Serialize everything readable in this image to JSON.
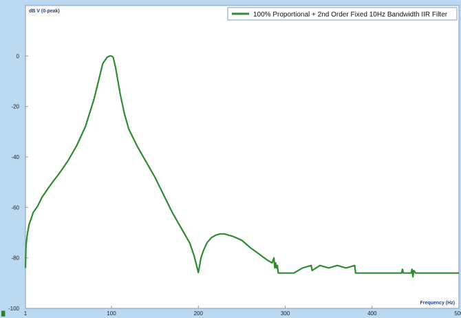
{
  "chart_data": {
    "type": "line",
    "title": "",
    "ylabel": "dB V (0-peak)",
    "xlabel": "Frequency (Hz)",
    "xlim": [
      1,
      500
    ],
    "ylim": [
      -100,
      20
    ],
    "x_ticks": [
      1,
      100,
      200,
      300,
      400,
      500
    ],
    "y_ticks": [
      0,
      -20,
      -40,
      -60,
      -80,
      -100
    ],
    "grid": false,
    "legend_position": "top-right",
    "series": [
      {
        "name": "100% Proportional + 2nd Order Fixed 10Hz Bandwidth IIR Filter",
        "color": "#2e8b2e",
        "x": [
          1,
          1.5,
          2,
          3,
          5,
          10,
          15,
          20,
          30,
          40,
          50,
          60,
          70,
          80,
          85,
          90,
          95,
          98,
          100,
          102,
          105,
          110,
          115,
          120,
          130,
          140,
          150,
          160,
          170,
          180,
          190,
          195,
          198,
          200,
          201,
          203,
          206,
          210,
          215,
          220,
          225,
          230,
          235,
          240,
          250,
          260,
          270,
          280,
          285,
          287,
          288,
          289,
          290,
          291,
          292,
          295,
          300,
          310,
          320,
          330,
          331,
          340,
          350,
          360,
          370,
          380,
          381,
          390,
          400,
          420,
          434,
          435,
          436,
          440,
          445,
          446,
          447,
          448,
          450,
          455,
          460,
          480,
          500
        ],
        "y": [
          -84,
          -76,
          -74,
          -71,
          -67,
          -62,
          -59.5,
          -56,
          -51,
          -46.5,
          -41.5,
          -35.5,
          -28,
          -17,
          -10,
          -3,
          -0.5,
          0,
          0,
          -0.5,
          -5,
          -15,
          -23,
          -29,
          -36,
          -42,
          -48,
          -55,
          -62,
          -68,
          -74,
          -79,
          -83,
          -85.8,
          -84,
          -80,
          -77,
          -74,
          -72,
          -71,
          -70.5,
          -70.5,
          -71,
          -71.5,
          -73,
          -76,
          -78.5,
          -81,
          -82,
          -80,
          -84,
          -82,
          -84,
          -83,
          -86,
          -86,
          -86,
          -86,
          -84,
          -83,
          -85,
          -83,
          -84,
          -83,
          -84,
          -83,
          -86,
          -86,
          -86,
          -86,
          -86,
          -84.5,
          -86,
          -86,
          -86,
          -84.5,
          -87.5,
          -85,
          -86,
          -86,
          -86,
          -86,
          -86
        ]
      }
    ]
  }
}
